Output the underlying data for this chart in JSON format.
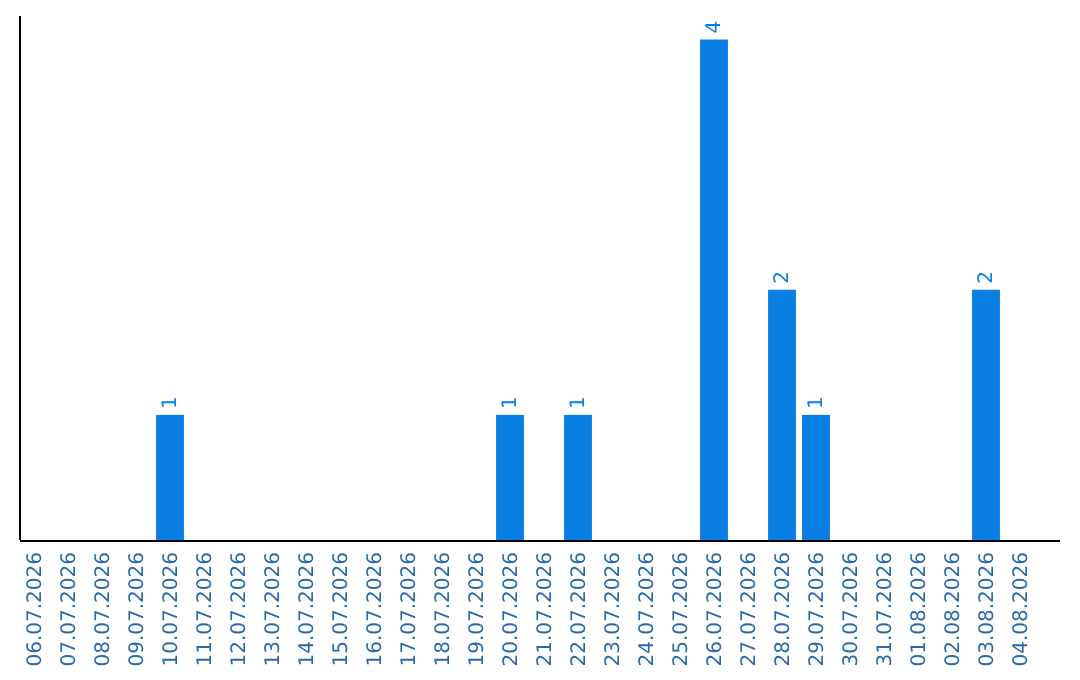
{
  "chart_data": {
    "type": "bar",
    "categories": [
      "06.07.2026",
      "07.07.2026",
      "08.07.2026",
      "09.07.2026",
      "10.07.2026",
      "11.07.2026",
      "12.07.2026",
      "13.07.2026",
      "14.07.2026",
      "15.07.2026",
      "16.07.2026",
      "17.07.2026",
      "18.07.2026",
      "19.07.2026",
      "20.07.2026",
      "21.07.2026",
      "22.07.2026",
      "23.07.2026",
      "24.07.2026",
      "25.07.2026",
      "26.07.2026",
      "27.07.2026",
      "28.07.2026",
      "29.07.2026",
      "30.07.2026",
      "31.07.2026",
      "01.08.2026",
      "02.08.2026",
      "03.08.2026",
      "04.08.2026"
    ],
    "values": [
      0,
      0,
      0,
      0,
      1,
      0,
      0,
      0,
      0,
      0,
      0,
      0,
      0,
      0,
      1,
      0,
      1,
      0,
      0,
      0,
      4,
      0,
      2,
      1,
      0,
      0,
      0,
      0,
      2,
      0
    ],
    "value_labels": [
      null,
      null,
      null,
      null,
      "1",
      null,
      null,
      null,
      null,
      null,
      null,
      null,
      null,
      null,
      "1",
      null,
      "1",
      null,
      null,
      null,
      "4",
      null,
      "2",
      "1",
      null,
      null,
      null,
      null,
      "2",
      null
    ],
    "color": "#0a7fe3",
    "relative": false
  }
}
